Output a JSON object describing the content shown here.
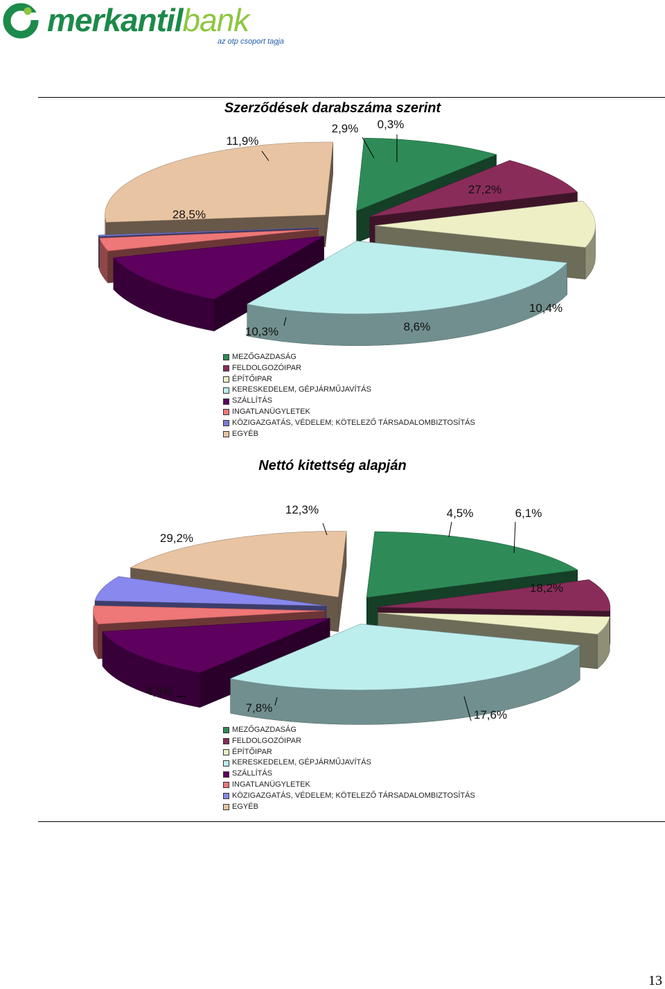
{
  "logo": {
    "brand_part1": "merkantil",
    "brand_part2": "bank",
    "tagline": "az otp csoport tagja"
  },
  "page_number": "13",
  "chart_data": [
    {
      "type": "pie",
      "title": "Szerződések darabszáma szerint",
      "slices": [
        {
          "name": "MEZŐGAZDASÁG",
          "value": 10.4,
          "label": "10,4%",
          "color": "#2e8b57"
        },
        {
          "name": "FELDOLGOZÓIPAR",
          "value": 8.6,
          "label": "8,6%",
          "color": "#8a2c5a"
        },
        {
          "name": "ÉPÍTŐIPAR",
          "value": 10.3,
          "label": "10,3%",
          "color": "#efefc6"
        },
        {
          "name": "KERESKEDELEM, GÉPJÁRMŰJAVÍTÁS",
          "value": 28.5,
          "label": "28,5%",
          "color": "#bdeeee"
        },
        {
          "name": "SZÁLLÍTÁS",
          "value": 11.9,
          "label": "11,9%",
          "color": "#5e005e"
        },
        {
          "name": "INGATLANÜGYLETEK",
          "value": 2.9,
          "label": "2,9%",
          "color": "#ee7777"
        },
        {
          "name": "KÖZIGAZGATÁS, VÉDELEM; KÖTELEZŐ TÁRSADALOMBIZTOSÍTÁS",
          "value": 0.3,
          "label": "0,3%",
          "color": "#7b7bd6"
        },
        {
          "name": "EGYÉB",
          "value": 27.2,
          "label": "27,2%",
          "color": "#e8c4a2"
        }
      ]
    },
    {
      "type": "pie",
      "title": "Nettó kitettség alapján",
      "slices": [
        {
          "name": "MEZŐGAZDASÁG",
          "value": 17.6,
          "label": "17,6%",
          "color": "#2e8b57"
        },
        {
          "name": "FELDOLGOZÓIPAR",
          "value": 7.8,
          "label": "7,8%",
          "color": "#8a2c5a"
        },
        {
          "name": "ÉPÍTŐIPAR",
          "value": 4.3,
          "label": "4,3%",
          "color": "#efefc6"
        },
        {
          "name": "KERESKEDELEM, GÉPJÁRMŰJAVÍTÁS",
          "value": 29.2,
          "label": "29,2%",
          "color": "#bdeeee"
        },
        {
          "name": "SZÁLLÍTÁS",
          "value": 12.3,
          "label": "12,3%",
          "color": "#5e005e"
        },
        {
          "name": "INGATLANÜGYLETEK",
          "value": 4.5,
          "label": "4,5%",
          "color": "#ee7777"
        },
        {
          "name": "KÖZIGAZGATÁS, VÉDELEM; KÖTELEZŐ TÁRSADALOMBIZTOSÍTÁS",
          "value": 6.1,
          "label": "6,1%",
          "color": "#8888ee"
        },
        {
          "name": "EGYÉB",
          "value": 18.2,
          "label": "18,2%",
          "color": "#e8c4a2"
        }
      ]
    }
  ]
}
